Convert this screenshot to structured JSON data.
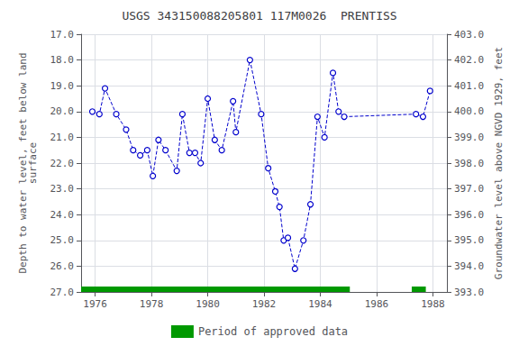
{
  "chart_data": {
    "type": "line",
    "title": "USGS 343150088205801 117M0026  PRENTISS",
    "y_label": "Depth to water level, feet below land\nsurface",
    "y2_label": "Groundwater level above NGVD 1929, feet",
    "x": [
      1975.9,
      1976.15,
      1976.35,
      1976.75,
      1977.1,
      1977.35,
      1977.6,
      1977.85,
      1978.05,
      1978.25,
      1978.5,
      1978.9,
      1979.1,
      1979.35,
      1979.55,
      1979.75,
      1980.0,
      1980.25,
      1980.5,
      1980.9,
      1981.0,
      1981.5,
      1981.9,
      1982.15,
      1982.4,
      1982.55,
      1982.7,
      1982.85,
      1983.1,
      1983.4,
      1983.65,
      1983.9,
      1984.15,
      1984.45,
      1984.65,
      1984.85,
      1987.4,
      1987.65,
      1987.9
    ],
    "series": [
      {
        "values": [
          20.0,
          20.1,
          19.1,
          20.1,
          20.7,
          21.5,
          21.7,
          21.5,
          22.5,
          21.1,
          21.5,
          22.3,
          20.1,
          21.6,
          21.6,
          22.0,
          19.5,
          21.1,
          21.5,
          19.6,
          20.8,
          18.0,
          20.1,
          22.2,
          23.1,
          23.7,
          25.0,
          24.9,
          26.1,
          25.0,
          23.6,
          20.2,
          21.0,
          18.5,
          20.0,
          20.2,
          20.1,
          20.2,
          19.2
        ],
        "color": "#0000cc",
        "marker": "circle",
        "line_style": "dashed"
      }
    ],
    "xlim": [
      1975.5,
      1988.5
    ],
    "xticks": [
      1976,
      1978,
      1980,
      1982,
      1984,
      1986,
      1988
    ],
    "ylim": [
      27.0,
      17.0
    ],
    "yticks": [
      {
        "value": 17.0,
        "label": "17.0"
      },
      {
        "value": 18.0,
        "label": "18.0"
      },
      {
        "value": 19.0,
        "label": "19.0"
      },
      {
        "value": 20.0,
        "label": "20.0"
      },
      {
        "value": 21.0,
        "label": "21.0"
      },
      {
        "value": 22.0,
        "label": "22.0"
      },
      {
        "value": 23.0,
        "label": "23.0"
      },
      {
        "value": 24.0,
        "label": "24.0"
      },
      {
        "value": 25.0,
        "label": "25.0"
      },
      {
        "value": 26.0,
        "label": "26.0"
      },
      {
        "value": 27.0,
        "label": "27.0"
      }
    ],
    "y2lim": [
      393.0,
      403.0
    ],
    "y2ticks": [
      {
        "value": 403.0,
        "label": "403.0"
      },
      {
        "value": 402.0,
        "label": "402.0"
      },
      {
        "value": 401.0,
        "label": "401.0"
      },
      {
        "value": 400.0,
        "label": "400.0"
      },
      {
        "value": 399.0,
        "label": "399.0"
      },
      {
        "value": 398.0,
        "label": "398.0"
      },
      {
        "value": 397.0,
        "label": "397.0"
      },
      {
        "value": 396.0,
        "label": "396.0"
      },
      {
        "value": 395.0,
        "label": "395.0"
      },
      {
        "value": 394.0,
        "label": "394.0"
      },
      {
        "value": 393.0,
        "label": "393.0"
      }
    ],
    "approved_periods": {
      "name": "Period of approved data",
      "color": "#009900",
      "periods": [
        [
          1975.5,
          1985.05
        ],
        [
          1987.25,
          1987.75
        ]
      ]
    },
    "grid": true,
    "legend": "bottom"
  }
}
